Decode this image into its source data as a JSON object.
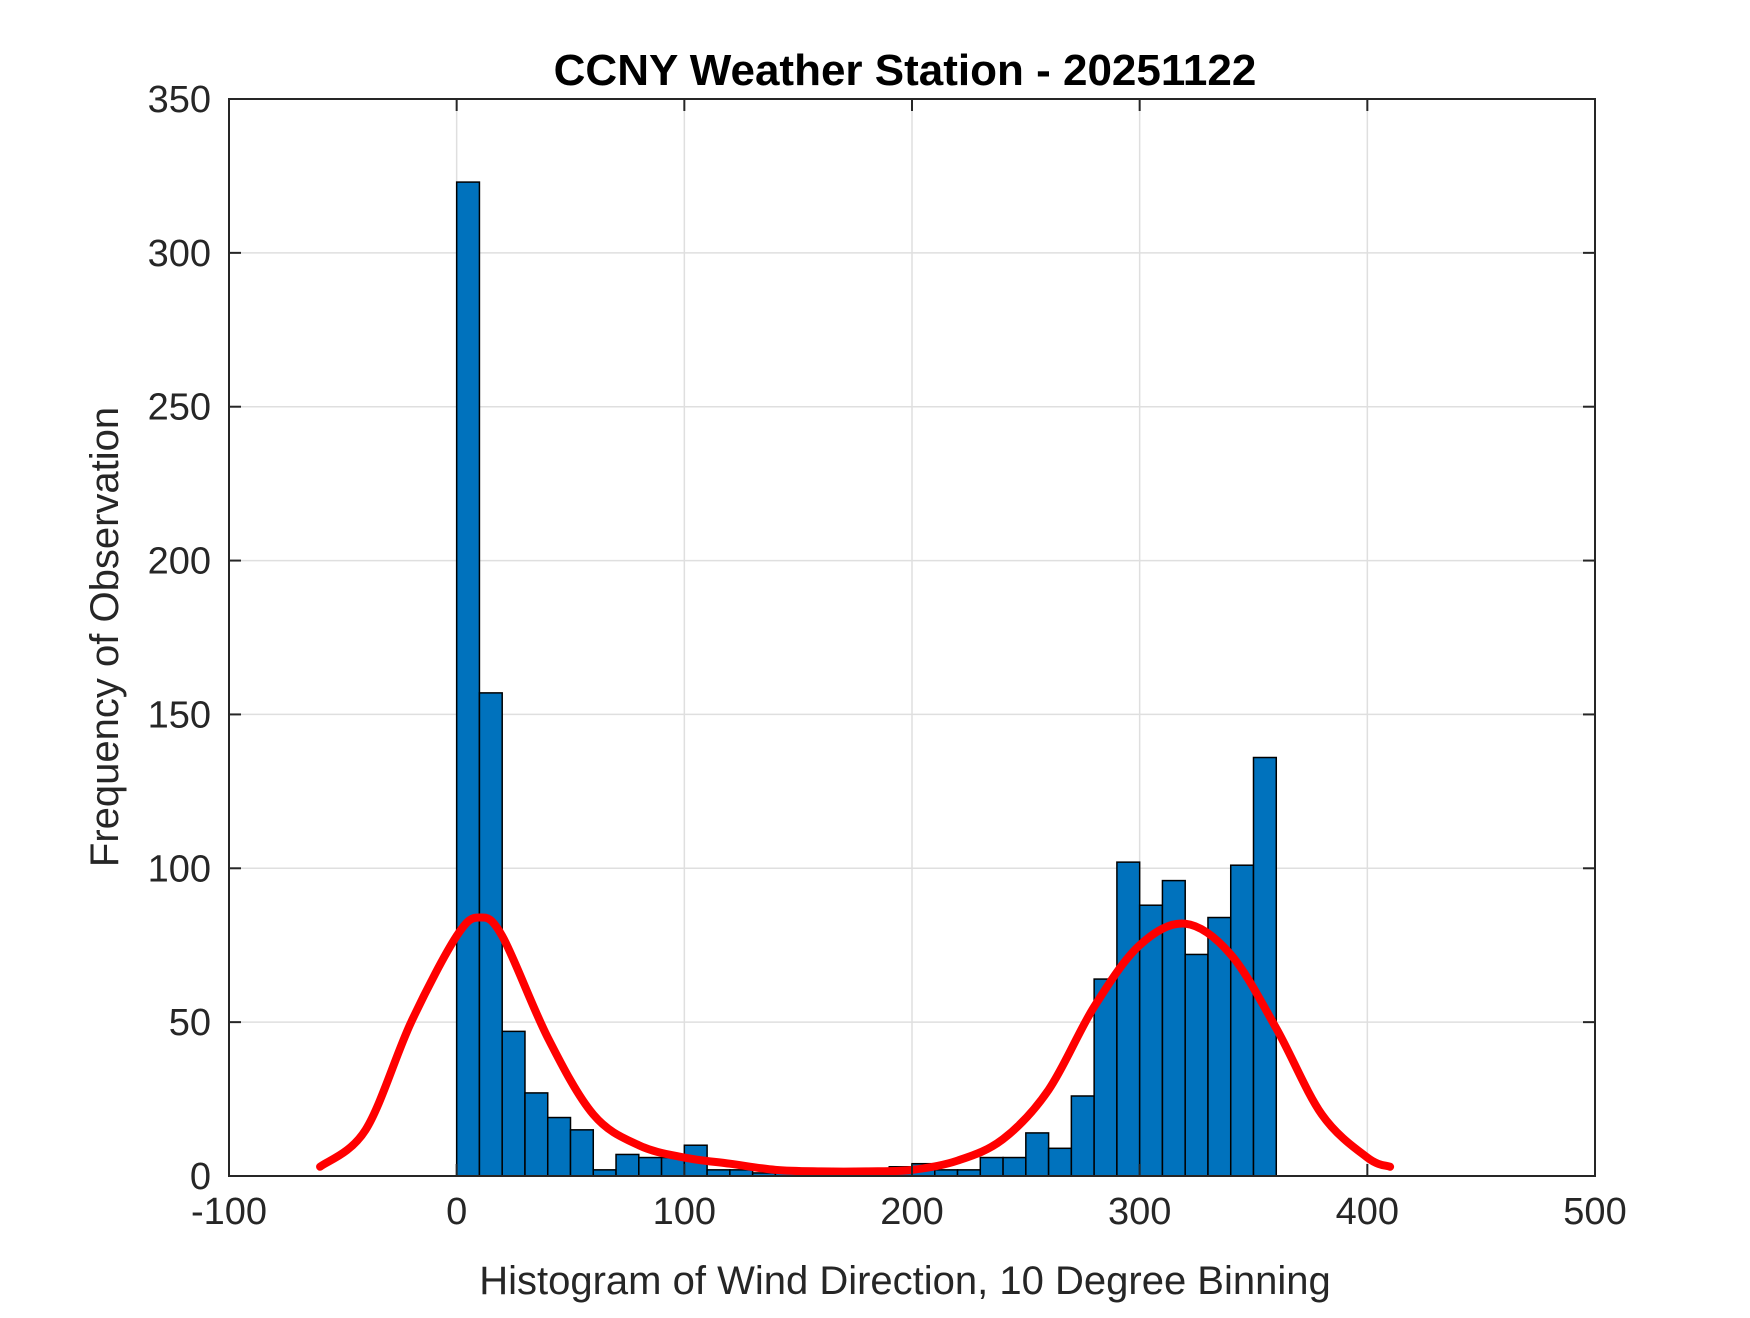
{
  "chart_data": {
    "type": "bar",
    "title": "CCNY Weather Station - 20251122",
    "xlabel": "Histogram of Wind Direction, 10 Degree Binning",
    "ylabel": "Frequency of Observation",
    "xlim": [
      -100,
      500
    ],
    "ylim": [
      0,
      350
    ],
    "xticks": [
      -100,
      0,
      100,
      200,
      300,
      400,
      500
    ],
    "yticks": [
      0,
      50,
      100,
      150,
      200,
      250,
      300,
      350
    ],
    "grid": true,
    "bin_width": 10,
    "series": [
      {
        "type": "bar",
        "color": "#0072BD",
        "bin_edges": [
          0,
          10,
          20,
          30,
          40,
          50,
          60,
          70,
          80,
          90,
          100,
          110,
          120,
          130,
          140,
          150,
          160,
          170,
          180,
          190,
          200,
          210,
          220,
          230,
          240,
          250,
          260,
          270,
          280,
          290,
          300,
          310,
          320,
          330,
          340,
          350,
          360
        ],
        "values": [
          323,
          157,
          47,
          27,
          19,
          15,
          2,
          7,
          6,
          6,
          10,
          2,
          2,
          1,
          1,
          1,
          1,
          1,
          1,
          3,
          4,
          2,
          2,
          6,
          6,
          14,
          9,
          26,
          64,
          102,
          88,
          96,
          72,
          84,
          101,
          136
        ]
      },
      {
        "type": "line",
        "color": "#FF0000",
        "x": [
          -60,
          -40,
          -20,
          0,
          10,
          20,
          40,
          60,
          80,
          100,
          120,
          140,
          160,
          180,
          200,
          220,
          240,
          260,
          280,
          300,
          320,
          340,
          360,
          380,
          400,
          410
        ],
        "y": [
          3,
          15,
          50,
          78,
          84,
          78,
          45,
          20,
          10,
          6,
          4,
          2,
          1.5,
          1.5,
          2,
          5,
          12,
          28,
          55,
          75,
          82,
          72,
          48,
          20,
          6,
          3
        ]
      }
    ]
  }
}
